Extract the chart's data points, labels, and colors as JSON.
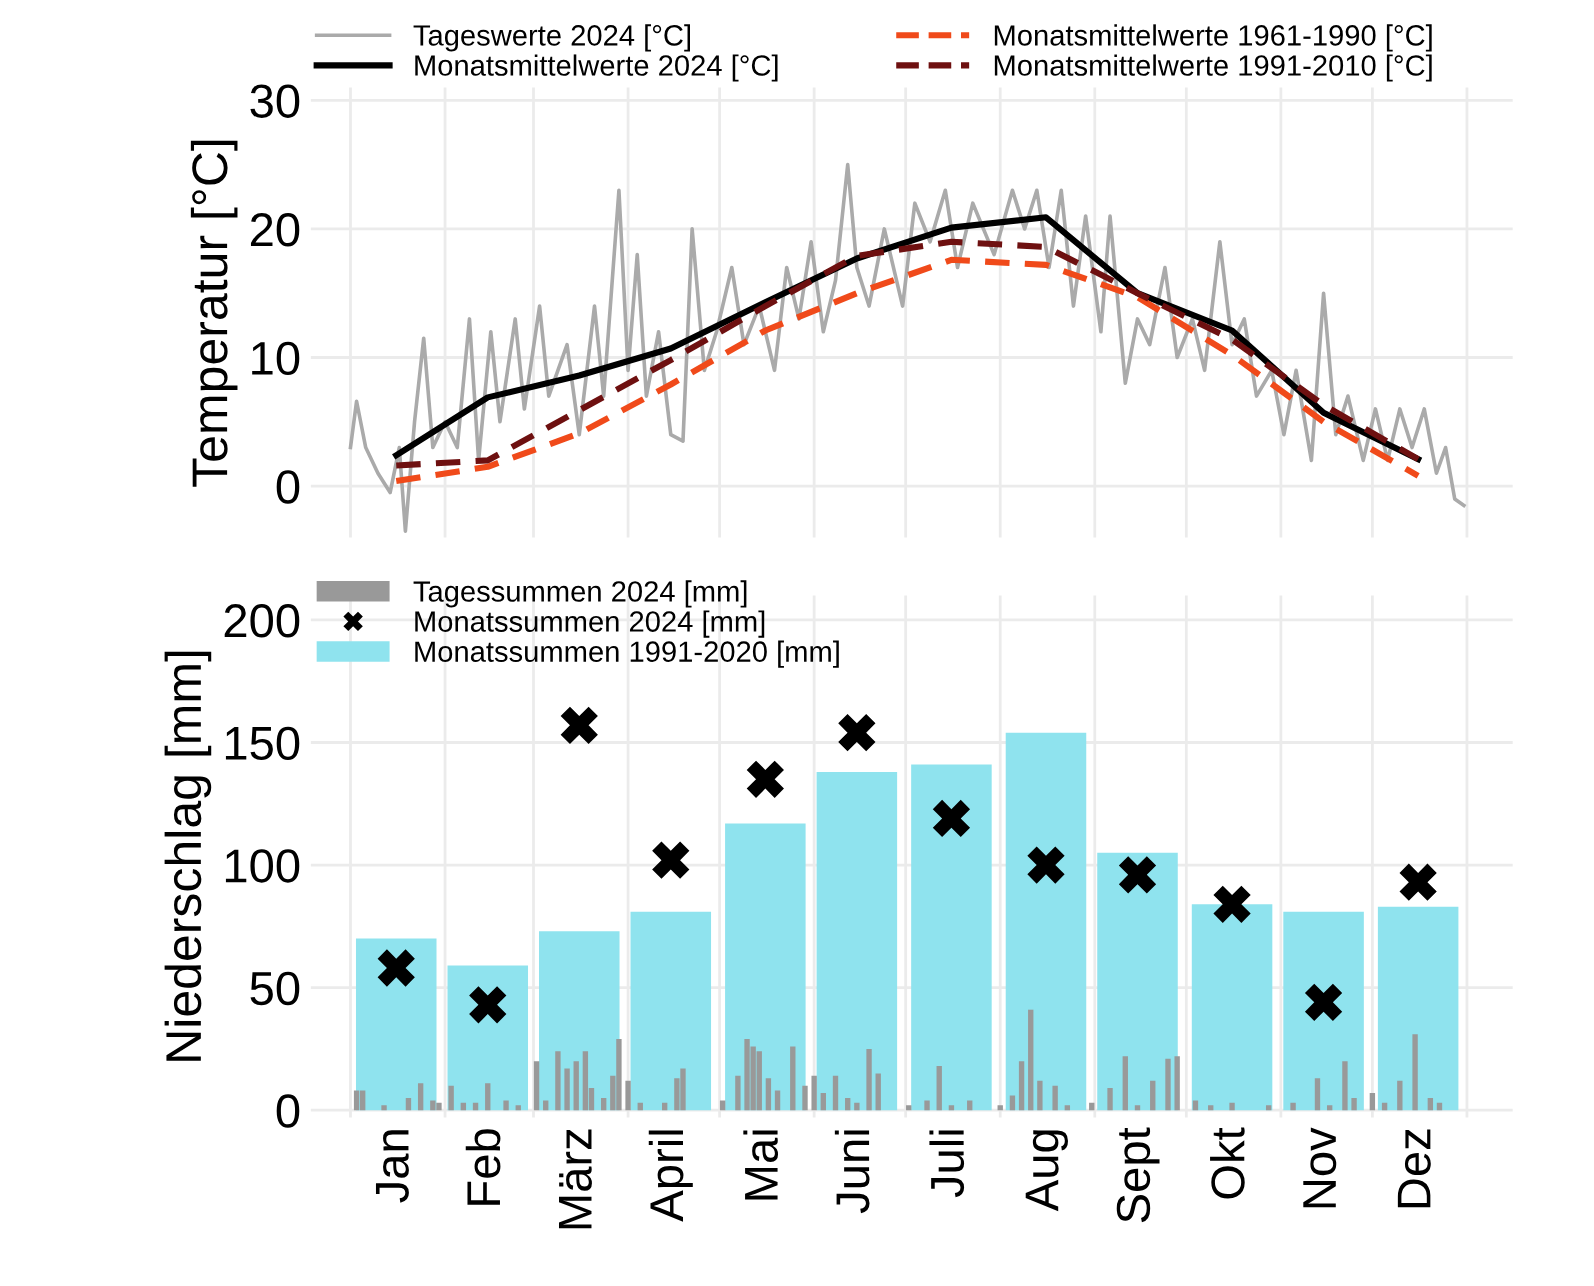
{
  "chart_data": [
    {
      "type": "line",
      "ylabel": "Temperatur [°C]",
      "xlim": [
        "2023-12-19",
        "2025-01-16"
      ],
      "ylim": [
        -4,
        31
      ],
      "yticks": [
        0,
        10,
        20,
        30
      ],
      "xticks": [
        {
          "value": "2024-01-01",
          "label": null
        },
        {
          "value": "2024-02-01",
          "label": null
        },
        {
          "value": "2024-03-01",
          "label": null
        },
        {
          "value": "2024-04-01",
          "label": null
        },
        {
          "value": "2024-05-01",
          "label": null
        },
        {
          "value": "2024-06-01",
          "label": null
        },
        {
          "value": "2024-07-01",
          "label": null
        },
        {
          "value": "2024-08-01",
          "label": null
        },
        {
          "value": "2024-09-01",
          "label": null
        },
        {
          "value": "2024-10-01",
          "label": null
        },
        {
          "value": "2024-11-01",
          "label": null
        },
        {
          "value": "2024-12-01",
          "label": null
        },
        {
          "value": "2025-01-01",
          "label": null
        }
      ],
      "tick_labels": "y",
      "grid": true,
      "legend": "top",
      "series": [
        {
          "name": "Tageswerte 2024 [°C]",
          "color": "#aaaaaa",
          "line_style": "solid",
          "x": [
            "2024-01-01",
            "2024-01-03",
            "2024-01-06",
            "2024-01-10",
            "2024-01-14",
            "2024-01-17",
            "2024-01-19",
            "2024-01-22",
            "2024-01-25",
            "2024-01-28",
            "2024-02-01",
            "2024-02-05",
            "2024-02-09",
            "2024-02-12",
            "2024-02-16",
            "2024-02-19",
            "2024-02-24",
            "2024-02-27",
            "2024-03-03",
            "2024-03-06",
            "2024-03-12",
            "2024-03-16",
            "2024-03-21",
            "2024-03-24",
            "2024-03-29",
            "2024-04-01",
            "2024-04-04",
            "2024-04-07",
            "2024-04-11",
            "2024-04-15",
            "2024-04-19",
            "2024-04-22",
            "2024-04-26",
            "2024-04-30",
            "2024-05-05",
            "2024-05-09",
            "2024-05-14",
            "2024-05-19",
            "2024-05-23",
            "2024-05-27",
            "2024-05-31",
            "2024-06-04",
            "2024-06-08",
            "2024-06-12",
            "2024-06-15",
            "2024-06-19",
            "2024-06-24",
            "2024-06-30",
            "2024-07-04",
            "2024-07-09",
            "2024-07-14",
            "2024-07-18",
            "2024-07-23",
            "2024-07-30",
            "2024-08-05",
            "2024-08-09",
            "2024-08-13",
            "2024-08-17",
            "2024-08-21",
            "2024-08-25",
            "2024-08-29",
            "2024-09-03",
            "2024-09-06",
            "2024-09-11",
            "2024-09-15",
            "2024-09-19",
            "2024-09-24",
            "2024-09-28",
            "2024-10-03",
            "2024-10-07",
            "2024-10-12",
            "2024-10-16",
            "2024-10-20",
            "2024-10-24",
            "2024-10-29",
            "2024-11-02",
            "2024-11-06",
            "2024-11-11",
            "2024-11-15",
            "2024-11-19",
            "2024-11-23",
            "2024-11-28",
            "2024-12-02",
            "2024-12-06",
            "2024-12-10",
            "2024-12-14",
            "2024-12-18",
            "2024-12-22",
            "2024-12-25",
            "2024-12-28",
            "2024-12-31"
          ],
          "values": [
            3,
            6.6,
            3,
            1,
            -0.5,
            3,
            -3.5,
            5,
            11.5,
            3,
            5,
            3,
            13,
            2,
            12,
            5,
            13,
            6,
            14,
            7,
            11,
            4,
            14,
            7,
            23,
            9,
            18,
            7,
            12,
            4,
            3.5,
            20,
            9,
            12,
            17,
            11,
            14,
            9,
            17,
            13,
            19,
            12,
            16,
            25,
            17,
            14,
            20,
            14,
            22,
            19,
            23,
            17,
            22,
            18,
            23,
            20,
            23,
            17,
            23,
            14,
            21,
            12,
            21,
            8,
            13,
            11,
            17,
            10,
            13,
            9,
            19,
            11,
            13,
            7,
            9,
            4,
            9,
            2,
            15,
            4,
            7,
            2,
            6,
            2,
            6,
            3,
            6,
            1,
            3,
            -1,
            -1.5
          ]
        },
        {
          "name": "Monatsmittelwerte 2024 [°C]",
          "color": "#000000",
          "line_style": "solid",
          "x": [
            "2024-01-16",
            "2024-02-15",
            "2024-03-16",
            "2024-04-15",
            "2024-05-16",
            "2024-06-15",
            "2024-07-16",
            "2024-08-16",
            "2024-09-15",
            "2024-10-16",
            "2024-11-15",
            "2024-12-16"
          ],
          "values": [
            2.4,
            6.9,
            8.6,
            10.7,
            14.3,
            17.7,
            20.1,
            20.9,
            15.0,
            12.1,
            5.7,
            2.1
          ]
        },
        {
          "name": "Monatsmittelwerte 1961-1990 [°C]",
          "color": "#f04a1a",
          "line_style": "dashed",
          "x": [
            "2024-01-16",
            "2024-02-15",
            "2024-03-16",
            "2024-04-15",
            "2024-05-16",
            "2024-06-15",
            "2024-07-16",
            "2024-08-16",
            "2024-09-15",
            "2024-10-16",
            "2024-11-15",
            "2024-12-16"
          ],
          "values": [
            0.4,
            1.5,
            4.1,
            7.9,
            12.1,
            15.0,
            17.6,
            17.2,
            14.7,
            10.2,
            5.0,
            0.8
          ]
        },
        {
          "name": "Monatsmittelwerte 1991-2010 [°C]",
          "color": "#6e1010",
          "line_style": "dashed",
          "x": [
            "2024-01-16",
            "2024-02-15",
            "2024-03-16",
            "2024-04-15",
            "2024-05-16",
            "2024-06-15",
            "2024-07-16",
            "2024-08-16",
            "2024-09-15",
            "2024-10-16",
            "2024-11-15",
            "2024-12-16"
          ],
          "values": [
            1.6,
            2.0,
            5.9,
            9.8,
            14.0,
            17.9,
            19.0,
            18.6,
            15.0,
            11.4,
            6.3,
            2.1
          ]
        }
      ]
    },
    {
      "type": "bar",
      "ylabel": "Niederschlag [mm]",
      "xlim": [
        "2023-12-19",
        "2025-01-16"
      ],
      "ylim": [
        -3,
        210
      ],
      "yticks": [
        0,
        50,
        100,
        150,
        200
      ],
      "xticks": [
        {
          "value": "2024-01-01",
          "label": null
        },
        {
          "value": "2024-01-16",
          "label": "Jan"
        },
        {
          "value": "2024-02-01",
          "label": null
        },
        {
          "value": "2024-02-15",
          "label": "Feb"
        },
        {
          "value": "2024-03-01",
          "label": null
        },
        {
          "value": "2024-03-16",
          "label": "März"
        },
        {
          "value": "2024-04-01",
          "label": null
        },
        {
          "value": "2024-04-15",
          "label": "April"
        },
        {
          "value": "2024-05-01",
          "label": null
        },
        {
          "value": "2024-05-16",
          "label": "Mai"
        },
        {
          "value": "2024-06-01",
          "label": null
        },
        {
          "value": "2024-06-15",
          "label": "Juni"
        },
        {
          "value": "2024-07-01",
          "label": null
        },
        {
          "value": "2024-07-16",
          "label": "Juli"
        },
        {
          "value": "2024-08-01",
          "label": null
        },
        {
          "value": "2024-08-16",
          "label": "Aug"
        },
        {
          "value": "2024-09-01",
          "label": null
        },
        {
          "value": "2024-09-15",
          "label": "Sept"
        },
        {
          "value": "2024-10-01",
          "label": null
        },
        {
          "value": "2024-10-16",
          "label": "Okt"
        },
        {
          "value": "2024-11-01",
          "label": null
        },
        {
          "value": "2024-11-15",
          "label": "Nov"
        },
        {
          "value": "2024-12-01",
          "label": null
        },
        {
          "value": "2024-12-16",
          "label": "Dez"
        },
        {
          "value": "2025-01-01",
          "label": null
        }
      ],
      "grid": true,
      "legend": "top left",
      "series": [
        {
          "name": "Tagessummen 2024 [mm]",
          "type": "bar",
          "color": "#999999",
          "x": [
            "2024-01-03",
            "2024-01-05",
            "2024-01-12",
            "2024-01-20",
            "2024-01-24",
            "2024-01-28",
            "2024-01-30",
            "2024-02-03",
            "2024-02-07",
            "2024-02-11",
            "2024-02-15",
            "2024-02-21",
            "2024-02-25",
            "2024-03-02",
            "2024-03-05",
            "2024-03-09",
            "2024-03-12",
            "2024-03-15",
            "2024-03-18",
            "2024-03-20",
            "2024-03-24",
            "2024-03-27",
            "2024-03-29",
            "2024-04-01",
            "2024-04-05",
            "2024-04-13",
            "2024-04-17",
            "2024-04-19",
            "2024-05-02",
            "2024-05-07",
            "2024-05-10",
            "2024-05-12",
            "2024-05-14",
            "2024-05-17",
            "2024-05-20",
            "2024-05-25",
            "2024-05-29",
            "2024-06-01",
            "2024-06-04",
            "2024-06-08",
            "2024-06-12",
            "2024-06-15",
            "2024-06-19",
            "2024-06-22",
            "2024-07-02",
            "2024-07-08",
            "2024-07-12",
            "2024-07-16",
            "2024-07-22",
            "2024-08-01",
            "2024-08-05",
            "2024-08-08",
            "2024-08-11",
            "2024-08-14",
            "2024-08-19",
            "2024-08-23",
            "2024-08-31",
            "2024-09-06",
            "2024-09-11",
            "2024-09-15",
            "2024-09-20",
            "2024-09-25",
            "2024-09-28",
            "2024-10-04",
            "2024-10-09",
            "2024-10-16",
            "2024-10-28",
            "2024-11-05",
            "2024-11-13",
            "2024-11-17",
            "2024-11-22",
            "2024-11-25",
            "2024-12-01",
            "2024-12-05",
            "2024-12-10",
            "2024-12-15",
            "2024-12-20",
            "2024-12-23"
          ],
          "values": [
            8,
            8,
            2,
            5,
            11,
            4,
            3,
            10,
            3,
            3,
            11,
            4,
            2,
            20,
            4,
            24,
            17,
            20,
            24,
            9,
            5,
            14,
            29,
            12,
            3,
            3,
            13,
            17,
            4,
            14,
            29,
            26,
            24,
            13,
            8,
            26,
            10,
            14,
            7,
            14,
            5,
            3,
            25,
            15,
            2,
            4,
            18,
            2,
            4,
            2,
            6,
            20,
            41,
            12,
            10,
            2,
            3,
            9,
            22,
            2,
            12,
            21,
            22,
            4,
            2,
            3,
            2,
            3,
            13,
            2,
            20,
            5,
            7,
            3,
            12,
            31,
            5,
            3
          ]
        },
        {
          "name": "Monatssummen 2024 [mm]",
          "type": "scatter",
          "marker": "cross",
          "color": "#000000",
          "x": [
            "2024-01-16",
            "2024-02-15",
            "2024-03-16",
            "2024-04-15",
            "2024-05-16",
            "2024-06-15",
            "2024-07-16",
            "2024-08-16",
            "2024-09-15",
            "2024-10-16",
            "2024-11-15",
            "2024-12-16"
          ],
          "values": [
            58,
            43,
            157,
            102,
            135,
            154,
            119,
            100,
            96,
            84,
            44,
            93
          ]
        },
        {
          "name": "Monatssummen 1991-2020 [mm]",
          "type": "bar",
          "color": "#8fe3ee",
          "x": [
            "2024-01-16",
            "2024-02-15",
            "2024-03-16",
            "2024-04-15",
            "2024-05-16",
            "2024-06-15",
            "2024-07-16",
            "2024-08-16",
            "2024-09-15",
            "2024-10-16",
            "2024-11-15",
            "2024-12-16"
          ],
          "values": [
            70,
            59,
            73,
            81,
            117,
            138,
            141,
            154,
            105,
            84,
            81,
            83
          ]
        }
      ]
    }
  ]
}
